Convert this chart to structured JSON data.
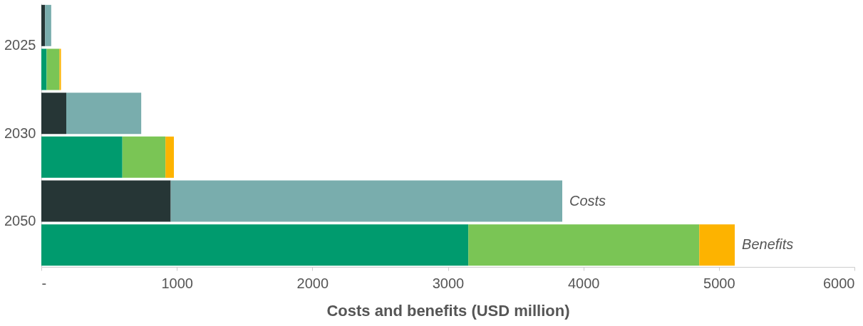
{
  "chart_data": {
    "type": "bar",
    "orientation": "horizontal",
    "stacked": true,
    "categories": [
      "2025",
      null,
      "2030",
      null,
      "2050",
      null
    ],
    "series": [
      {
        "color": "#263636",
        "values": [
          28,
          null,
          184,
          null,
          955,
          null
        ]
      },
      {
        "color": "#009b6e",
        "values": [
          null,
          39,
          null,
          598,
          null,
          3151
        ]
      },
      {
        "color": "#79adad",
        "values": [
          45,
          null,
          553,
          null,
          2889,
          null
        ]
      },
      {
        "color": "#7ac555",
        "values": [
          null,
          95,
          null,
          318,
          null,
          1704
        ]
      },
      {
        "color": "#fdb300",
        "values": [
          null,
          11,
          null,
          62,
          null,
          262
        ]
      }
    ],
    "xlim": [
      0,
      6000
    ],
    "xticks": [
      {
        "value": 0,
        "label": "-"
      },
      1000,
      2000,
      3000,
      4000,
      5000,
      6000
    ],
    "xlabel": "Costs and benefits (USD million)",
    "annotations": [
      {
        "text": "Costs",
        "x": 3844
      },
      {
        "text": "Benefits",
        "x": 5117
      }
    ],
    "grid": false
  }
}
